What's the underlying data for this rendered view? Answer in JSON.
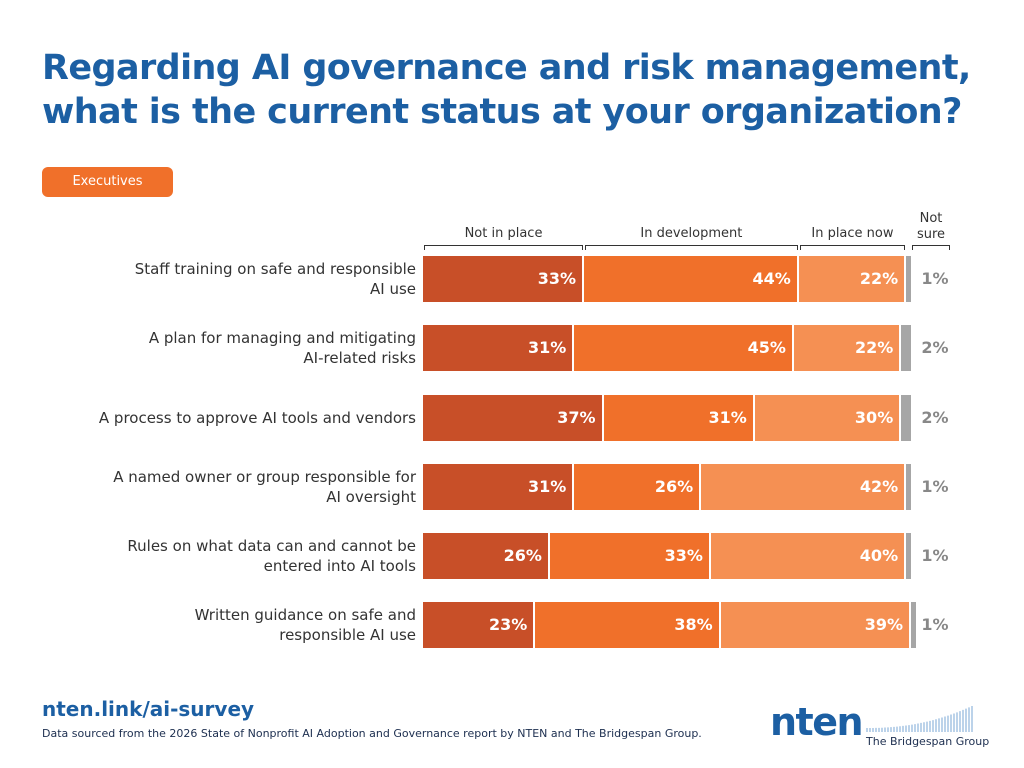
{
  "title": "Regarding AI governance and risk management, what is the current status at your organization?",
  "segment_label": "Executives",
  "url": "nten.link/ai-survey",
  "source": "Data sourced from the 2026 State of Nonprofit AI Adoption and Governance report by NTEN and The Bridgespan Group.",
  "logos": {
    "nten": "nten",
    "bridgespan": "The Bridgespan Group"
  },
  "colors": {
    "not_in_place": "#c84f28",
    "in_development": "#f0702a",
    "in_place_now": "#f59053",
    "not_sure": "#a6a6a6",
    "title": "#1c5fa3"
  },
  "chart_data": {
    "type": "bar",
    "orientation": "horizontal",
    "stacked": true,
    "categories": [
      [
        "Staff training on safe and responsible",
        "AI use"
      ],
      [
        "A plan for managing and mitigating",
        "AI-related risks"
      ],
      [
        "A process to approve AI tools and vendors"
      ],
      [
        "A named owner or group responsible for",
        "AI oversight"
      ],
      [
        "Rules on what data can and cannot be",
        "entered into AI tools"
      ],
      [
        "Written guidance on safe and",
        "responsible AI use"
      ]
    ],
    "series": [
      {
        "name": "Not in place",
        "values": [
          33,
          31,
          37,
          31,
          26,
          23
        ]
      },
      {
        "name": "In development",
        "values": [
          44,
          45,
          31,
          26,
          33,
          38
        ]
      },
      {
        "name": "In place now",
        "values": [
          22,
          22,
          30,
          42,
          40,
          39
        ]
      },
      {
        "name": "Not sure",
        "values": [
          1,
          2,
          2,
          1,
          1,
          1
        ]
      }
    ],
    "header_labels": [
      "Not in place",
      "In development",
      "In place now",
      "Not sure"
    ],
    "value_suffix": "%"
  }
}
